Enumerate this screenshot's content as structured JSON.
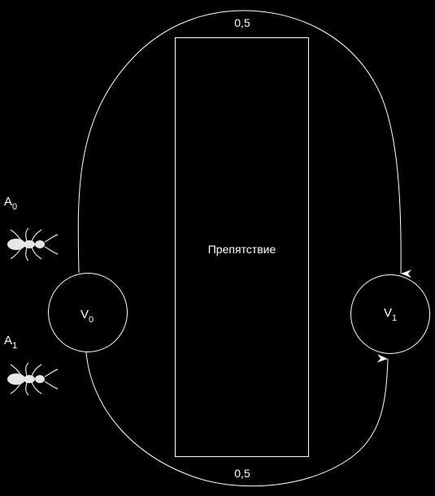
{
  "diagram": {
    "obstacle_label": "Препятствие",
    "nodes": {
      "v0": {
        "base": "V",
        "sub": "0"
      },
      "v1": {
        "base": "V",
        "sub": "1"
      }
    },
    "agents": [
      {
        "base": "A",
        "sub": "0",
        "icon": "ant-icon"
      },
      {
        "base": "A",
        "sub": "1",
        "icon": "ant-icon"
      }
    ],
    "edges": {
      "top": {
        "weight": "0,5"
      },
      "bottom": {
        "weight": "0,5"
      }
    },
    "colors": {
      "background": "#000000",
      "stroke": "#ffffff",
      "ant": "#e6e6e6"
    }
  }
}
